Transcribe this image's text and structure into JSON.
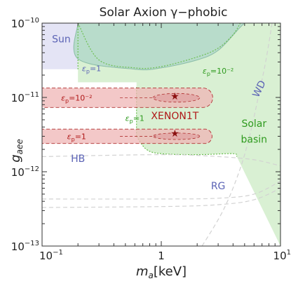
{
  "chart_data": {
    "type": "area",
    "title": "Solar Axion γ−phobic",
    "xlabel": {
      "var": "m",
      "sub": "a",
      "unit": "[keV]"
    },
    "ylabel": {
      "var": "g",
      "sub": "aee"
    },
    "x_scale": "log",
    "y_scale": "log",
    "xlim": [
      0.1,
      10
    ],
    "ylim": [
      1e-13,
      1e-10
    ],
    "x_ticks": [
      {
        "value": 0.1,
        "base": "10",
        "exp": "−1"
      },
      {
        "value": 1,
        "label": "1"
      },
      {
        "value": 10,
        "base": "10",
        "exp": "1"
      }
    ],
    "y_ticks": [
      {
        "value": 1e-13,
        "base": "10",
        "exp": "−13"
      },
      {
        "value": 1e-12,
        "base": "10",
        "exp": "−12"
      },
      {
        "value": 1e-11,
        "base": "10",
        "exp": "−11"
      },
      {
        "value": 1e-10,
        "base": "10",
        "exp": "−10"
      }
    ],
    "grid": false,
    "colors": {
      "sun": "#e4e4f5",
      "sun_text": "#5b63b5",
      "hb_text": "#5b63b5",
      "rg_text": "#5b63b5",
      "wd_text": "#5b63b5",
      "basin_fill": "#d9f0d3",
      "basin_line": "#6dbf52",
      "basin_text": "#2e9a1e",
      "teal_fill": "#b8dccb",
      "xenon_fill": "#efb5b5",
      "xenon_line": "#b03030",
      "xenon_text": "#b01818",
      "grey_line": "#d2d2d2"
    },
    "regions": [
      {
        "name": "Sun",
        "x_range": [
          0.1,
          0.2
        ],
        "y_range": [
          2.4e-11,
          1e-10
        ]
      },
      {
        "name": "Solar basin",
        "boundary_low_x": 0.2,
        "upper_green_curve": [
          [
            0.2,
            1e-10
          ],
          [
            0.3,
            3.2e-11
          ],
          [
            0.6,
            2.5e-11
          ],
          [
            1.0,
            2.6e-11
          ],
          [
            2.0,
            3.5e-11
          ],
          [
            3.0,
            4.6e-11
          ],
          [
            4.0,
            7e-11
          ],
          [
            4.6,
            1e-10
          ]
        ],
        "lower_boundary": [
          [
            0.62,
            3e-12
          ],
          [
            0.75,
            2e-12
          ],
          [
            1.0,
            1.75e-12
          ],
          [
            2.0,
            1.7e-12
          ],
          [
            4.0,
            1.75e-12
          ],
          [
            4.3,
            1.6e-12
          ]
        ]
      },
      {
        "name": "εp=1 (teal)",
        "boundary": [
          [
            0.2,
            1e-10
          ],
          [
            0.2,
            3.3e-11
          ],
          [
            0.6,
            2.4e-11
          ],
          [
            1.0,
            2.5e-11
          ],
          [
            2.0,
            3.2e-11
          ],
          [
            3.0,
            4.3e-11
          ],
          [
            4.5,
            8.5e-11
          ],
          [
            5.0,
            1e-10
          ]
        ]
      }
    ],
    "xenon_bands": [
      {
        "label": "εp=10⁻²",
        "label_base": "ε",
        "label_sub": "p",
        "label_rest": "=10⁻²",
        "x_start": 0.1,
        "x_end": 2.7,
        "y_center": 9.9e-12,
        "y_width_factor": 1.35
      },
      {
        "label": "εp=1",
        "label_base": "ε",
        "label_sub": "p",
        "label_rest": "=1",
        "x_start": 0.1,
        "x_end": 2.7,
        "y_center": 3e-12,
        "y_width_factor": 1.25
      }
    ],
    "best_fit_points": [
      {
        "x": 1.3,
        "y": 1.05e-11
      },
      {
        "x": 1.3,
        "y": 3.3e-12
      }
    ],
    "dashed_curves": [
      {
        "name": "HB",
        "points": [
          [
            0.1,
            1.6e-12
          ],
          [
            1,
            1.7e-12
          ],
          [
            3,
            1.6e-12
          ],
          [
            6,
            1.45e-12
          ],
          [
            10,
            1.2e-12
          ]
        ]
      },
      {
        "name": "RG",
        "points": [
          [
            0.1,
            4.3e-13
          ],
          [
            1,
            4.3e-13
          ],
          [
            3,
            4.4e-13
          ],
          [
            6,
            5e-13
          ],
          [
            10,
            7.5e-13
          ]
        ]
      },
      {
        "name": "RG2",
        "points": [
          [
            0.1,
            3.3e-13
          ],
          [
            1,
            3.4e-13
          ],
          [
            3,
            3.6e-13
          ],
          [
            6,
            4.2e-13
          ],
          [
            10,
            6e-13
          ]
        ]
      },
      {
        "name": "WD",
        "points": [
          [
            2.2,
            1e-13
          ],
          [
            3.3,
            3e-13
          ],
          [
            4.5,
            1e-12
          ],
          [
            5.5,
            3e-12
          ],
          [
            6.5,
            1e-11
          ],
          [
            7.5,
            3e-11
          ],
          [
            8.5,
            1e-10
          ]
        ]
      }
    ],
    "annotations": [
      {
        "text": "Sun",
        "x": 0.145,
        "y": 5.5e-11,
        "color_key": "sun_text"
      },
      {
        "base": "ε",
        "sub": "p",
        "rest": "=1",
        "x": 0.26,
        "y": 2.25e-11,
        "color_key": "sun_text"
      },
      {
        "base": "ε",
        "sub": "p",
        "rest": "=10⁻²",
        "x": 3.0,
        "y": 2.1e-11,
        "color_key": "basin_text"
      },
      {
        "base": "ε",
        "sub": "p",
        "rest": "=1",
        "x": 0.6,
        "y": 4.85e-12,
        "color_key": "basin_text"
      },
      {
        "text": "XENON1T",
        "x": 1.3,
        "y": 5.1e-12,
        "color_key": "xenon_text"
      },
      {
        "text": "WD",
        "x": 7.0,
        "y": 1.25e-11,
        "color_key": "wd_text",
        "rotate": -64
      },
      {
        "text": "Solar",
        "x": 6.0,
        "y": 4e-12,
        "color_key": "basin_text"
      },
      {
        "text": "basin",
        "x": 6.0,
        "y": 2.45e-12,
        "color_key": "basin_text"
      },
      {
        "text": "HB",
        "x": 0.2,
        "y": 1.35e-12,
        "color_key": "hb_text"
      },
      {
        "text": "RG",
        "x": 3.0,
        "y": 5.8e-13,
        "color_key": "rg_text"
      }
    ]
  }
}
